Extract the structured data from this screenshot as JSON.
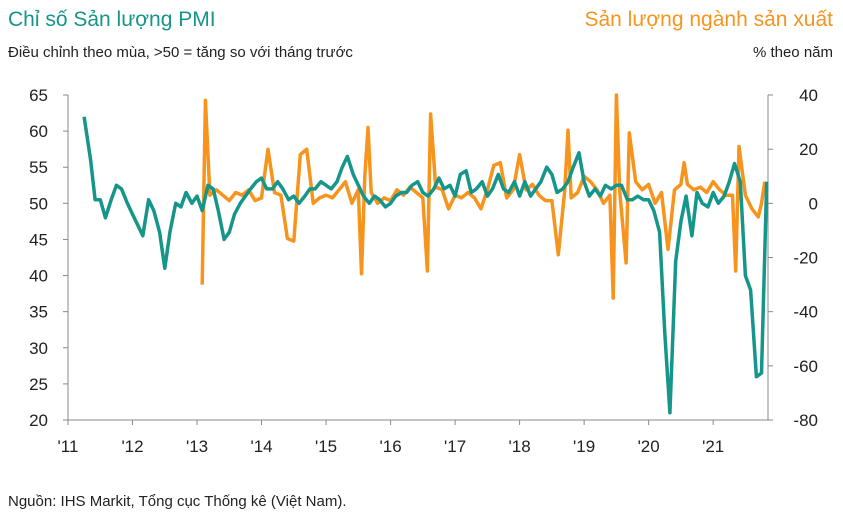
{
  "chart_data": {
    "type": "line",
    "title": "Chỉ số Sản lượng PMI",
    "subtitle": "Điều chỉnh theo mùa, >50 = tăng so với tháng trước",
    "title_right": "Sản lượng ngành sản xuất",
    "subtitle_right": "% theo năm",
    "source": "Nguồn: IHS Markit, Tổng cục Thống kê (Việt Nam).",
    "xlim": [
      2011,
      2021.85
    ],
    "xticks": [
      {
        "value": 2011,
        "label": "'11"
      },
      {
        "value": 2012,
        "label": "'12"
      },
      {
        "value": 2013,
        "label": "'13"
      },
      {
        "value": 2014,
        "label": "'14"
      },
      {
        "value": 2015,
        "label": "'15"
      },
      {
        "value": 2016,
        "label": "'16"
      },
      {
        "value": 2017,
        "label": "'17"
      },
      {
        "value": 2018,
        "label": "'18"
      },
      {
        "value": 2019,
        "label": "'19"
      },
      {
        "value": 2020,
        "label": "'20"
      },
      {
        "value": 2021,
        "label": "'21"
      }
    ],
    "ylim": [
      20,
      65
    ],
    "yticks": [
      20,
      25,
      30,
      35,
      40,
      45,
      50,
      55,
      60,
      65
    ],
    "y2lim": [
      -80,
      40
    ],
    "y2ticks": [
      -80,
      -60,
      -40,
      -20,
      0,
      20,
      40
    ],
    "series": [
      {
        "name": "Chỉ số Sản lượng PMI",
        "color": "#16958a",
        "x": [
          2011.25,
          2011.35,
          2011.42,
          2011.5,
          2011.58,
          2011.67,
          2011.75,
          2011.83,
          2011.92,
          2012.0,
          2012.08,
          2012.16,
          2012.25,
          2012.33,
          2012.42,
          2012.5,
          2012.58,
          2012.67,
          2012.75,
          2012.83,
          2012.92,
          2013.0,
          2013.08,
          2013.17,
          2013.25,
          2013.33,
          2013.42,
          2013.5,
          2013.58,
          2013.67,
          2013.75,
          2013.83,
          2013.92,
          2014.0,
          2014.08,
          2014.17,
          2014.25,
          2014.33,
          2014.42,
          2014.5,
          2014.58,
          2014.67,
          2014.75,
          2014.83,
          2014.92,
          2015.0,
          2015.08,
          2015.17,
          2015.25,
          2015.33,
          2015.42,
          2015.5,
          2015.58,
          2015.67,
          2015.75,
          2015.83,
          2015.92,
          2016.0,
          2016.08,
          2016.17,
          2016.25,
          2016.33,
          2016.42,
          2016.5,
          2016.58,
          2016.67,
          2016.75,
          2016.83,
          2016.92,
          2017.0,
          2017.08,
          2017.17,
          2017.25,
          2017.33,
          2017.42,
          2017.5,
          2017.58,
          2017.67,
          2017.75,
          2017.83,
          2017.92,
          2018.0,
          2018.08,
          2018.17,
          2018.25,
          2018.33,
          2018.42,
          2018.5,
          2018.58,
          2018.67,
          2018.75,
          2018.83,
          2018.92,
          2019.0,
          2019.08,
          2019.17,
          2019.25,
          2019.33,
          2019.42,
          2019.5,
          2019.58,
          2019.67,
          2019.75,
          2019.83,
          2019.92,
          2020.0,
          2020.08,
          2020.17,
          2020.25,
          2020.33,
          2020.42,
          2020.5,
          2020.58,
          2020.67,
          2020.75,
          2020.83,
          2020.92,
          2021.0,
          2021.08,
          2021.17,
          2021.25,
          2021.33,
          2021.42,
          2021.5,
          2021.58,
          2021.67,
          2021.75,
          2021.83
        ],
        "values": [
          62,
          56,
          50.5,
          50.5,
          48,
          50.5,
          52.5,
          52,
          50,
          48.5,
          47,
          45.5,
          50.5,
          49,
          46,
          41,
          46,
          50,
          49.5,
          51.5,
          50,
          51,
          49,
          52.5,
          52,
          49,
          45,
          46,
          48.5,
          50,
          51,
          52,
          53,
          53.5,
          52,
          52,
          53,
          52,
          50.5,
          51,
          50,
          51,
          52,
          52,
          53,
          52.5,
          52,
          53,
          55,
          56.5,
          54,
          52.5,
          51,
          50,
          51,
          50.5,
          49.5,
          50,
          51,
          51.5,
          51.5,
          52.5,
          53,
          51.5,
          51,
          52,
          53.5,
          52,
          52.5,
          51,
          54,
          54.5,
          51.5,
          52,
          53,
          51,
          52,
          54,
          52,
          51.5,
          53,
          51,
          53,
          51,
          52,
          53,
          55,
          54,
          51.5,
          52,
          53,
          55,
          57,
          53,
          51,
          52,
          51,
          52.5,
          52,
          52.5,
          52.5,
          50.5,
          50.5,
          51,
          50.5,
          50.5,
          49,
          46,
          32,
          21,
          42,
          47.5,
          51,
          45.5,
          51.5,
          50,
          49.5,
          51.5,
          50,
          51,
          53,
          55.5,
          53,
          40,
          38,
          26,
          26.5,
          53
        ]
      },
      {
        "name": "Sản lượng ngành sản xuất",
        "color": "#f7941d",
        "axis": "y2",
        "x": [
          2013.08,
          2013.13,
          2013.2,
          2013.3,
          2013.4,
          2013.5,
          2013.6,
          2013.7,
          2013.8,
          2013.9,
          2014.0,
          2014.1,
          2014.2,
          2014.3,
          2014.4,
          2014.5,
          2014.6,
          2014.7,
          2014.8,
          2014.9,
          2015.0,
          2015.1,
          2015.2,
          2015.3,
          2015.4,
          2015.5,
          2015.55,
          2015.6,
          2015.65,
          2015.7,
          2015.8,
          2015.9,
          2016.0,
          2016.1,
          2016.2,
          2016.3,
          2016.4,
          2016.5,
          2016.57,
          2016.62,
          2016.7,
          2016.8,
          2016.9,
          2017.0,
          2017.1,
          2017.2,
          2017.3,
          2017.4,
          2017.5,
          2017.6,
          2017.7,
          2017.8,
          2017.9,
          2018.0,
          2018.1,
          2018.2,
          2018.3,
          2018.4,
          2018.5,
          2018.6,
          2018.7,
          2018.75,
          2018.8,
          2018.9,
          2019.0,
          2019.1,
          2019.2,
          2019.3,
          2019.4,
          2019.45,
          2019.5,
          2019.55,
          2019.65,
          2019.7,
          2019.8,
          2019.9,
          2020.0,
          2020.1,
          2020.2,
          2020.3,
          2020.4,
          2020.5,
          2020.55,
          2020.6,
          2020.7,
          2020.8,
          2020.9,
          2021.0,
          2021.1,
          2021.2,
          2021.3,
          2021.35,
          2021.4,
          2021.5,
          2021.6,
          2021.7,
          2021.75,
          2021.8
        ],
        "values": [
          -30,
          38,
          3,
          5,
          3,
          1,
          4,
          3,
          5,
          1,
          2,
          20,
          4,
          3,
          -13,
          -14,
          18,
          20,
          0,
          2,
          3,
          2,
          5,
          8,
          0,
          5,
          -26,
          10,
          28,
          4,
          0,
          2,
          1,
          5,
          3,
          6,
          4,
          2,
          -25,
          33,
          6,
          5,
          -2,
          3,
          2,
          4,
          2,
          -2,
          5,
          14,
          15,
          2,
          5,
          18,
          5,
          7,
          3,
          1,
          1,
          -19,
          5,
          27,
          2,
          4,
          10,
          8,
          5,
          0,
          3,
          -35,
          40,
          5,
          -22,
          26,
          8,
          5,
          7,
          0,
          4,
          -17,
          5,
          7,
          15,
          7,
          5,
          6,
          4,
          8,
          5,
          3,
          3,
          -25,
          21,
          3,
          -2,
          -5,
          0,
          8
        ]
      }
    ]
  }
}
